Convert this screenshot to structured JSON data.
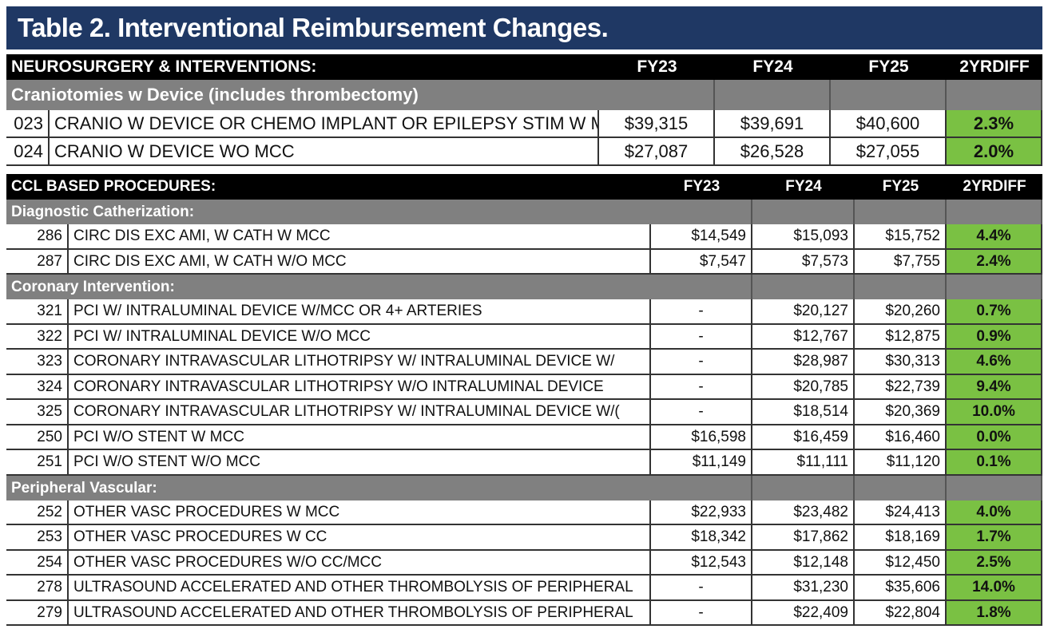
{
  "title": "Table 2. Interventional Reimbursement Changes.",
  "colors": {
    "title_bg": "#1f3864",
    "header_bg": "#000000",
    "group_bg": "#808080",
    "diff_green": "#7ac143"
  },
  "table1": {
    "header": {
      "section": "NEUROSURGERY & INTERVENTIONS:",
      "fy23": "FY23",
      "fy24": "FY24",
      "fy25": "FY25",
      "diff": "2YRDIFF"
    },
    "groups": [
      {
        "label": "Craniotomies w Device (includes thrombectomy)",
        "rows": [
          {
            "code": "023",
            "desc": "CRANIO W DEVICE OR CHEMO IMPLANT OR EPILEPSY STIM W MCC",
            "fy23": "$39,315",
            "fy24": "$39,691",
            "fy25": "$40,600",
            "diff": "2.3%"
          },
          {
            "code": "024",
            "desc": "CRANIO W DEVICE WO MCC",
            "fy23": "$27,087",
            "fy24": "$26,528",
            "fy25": "$27,055",
            "diff": "2.0%"
          }
        ]
      }
    ]
  },
  "table2": {
    "header": {
      "section": "CCL BASED PROCEDURES:",
      "fy23": "FY23",
      "fy24": "FY24",
      "fy25": "FY25",
      "diff": "2YRDIFF"
    },
    "groups": [
      {
        "label": "Diagnostic Catherization:",
        "rows": [
          {
            "code": "286",
            "desc": "CIRC DIS EXC AMI, W CATH W MCC",
            "fy23": "$14,549",
            "fy24": "$15,093",
            "fy25": "$15,752",
            "diff": "4.4%"
          },
          {
            "code": "287",
            "desc": "CIRC DIS EXC AMI, W CATH W/O MCC",
            "fy23": "$7,547",
            "fy24": "$7,573",
            "fy25": "$7,755",
            "diff": "2.4%"
          }
        ]
      },
      {
        "label": "Coronary Intervention:",
        "rows": [
          {
            "code": "321",
            "desc": "PCI W/ INTRALUMINAL DEVICE W/MCC OR 4+ ARTERIES",
            "fy23": "-",
            "fy24": "$20,127",
            "fy25": "$20,260",
            "diff": "0.7%"
          },
          {
            "code": "322",
            "desc": "PCI W/ INTRALUMINAL DEVICE W/O MCC",
            "fy23": "-",
            "fy24": "$12,767",
            "fy25": "$12,875",
            "diff": "0.9%"
          },
          {
            "code": "323",
            "desc": "CORONARY INTRAVASCULAR LITHOTRIPSY W/ INTRALUMINAL DEVICE W/",
            "fy23": "-",
            "fy24": "$28,987",
            "fy25": "$30,313",
            "diff": "4.6%"
          },
          {
            "code": "324",
            "desc": "CORONARY INTRAVASCULAR LITHOTRIPSY W/O INTRALUMINAL DEVICE",
            "fy23": "-",
            "fy24": "$20,785",
            "fy25": "$22,739",
            "diff": "9.4%"
          },
          {
            "code": "325",
            "desc": "CORONARY INTRAVASCULAR LITHOTRIPSY W/ INTRALUMINAL DEVICE W/(",
            "fy23": "-",
            "fy24": "$18,514",
            "fy25": "$20,369",
            "diff": "10.0%"
          },
          {
            "code": "250",
            "desc": "PCI W/O STENT W MCC",
            "fy23": "$16,598",
            "fy24": "$16,459",
            "fy25": "$16,460",
            "diff": "0.0%"
          },
          {
            "code": "251",
            "desc": "PCI W/O STENT W/O MCC",
            "fy23": "$11,149",
            "fy24": "$11,111",
            "fy25": "$11,120",
            "diff": "0.1%"
          }
        ]
      },
      {
        "label": "Peripheral Vascular:",
        "rows": [
          {
            "code": "252",
            "desc": "OTHER VASC PROCEDURES W MCC",
            "fy23": "$22,933",
            "fy24": "$23,482",
            "fy25": "$24,413",
            "diff": "4.0%"
          },
          {
            "code": "253",
            "desc": "OTHER VASC PROCEDURES W CC",
            "fy23": "$18,342",
            "fy24": "$17,862",
            "fy25": "$18,169",
            "diff": "1.7%"
          },
          {
            "code": "254",
            "desc": "OTHER VASC PROCEDURES W/O CC/MCC",
            "fy23": "$12,543",
            "fy24": "$12,148",
            "fy25": "$12,450",
            "diff": "2.5%"
          },
          {
            "code": "278",
            "desc": "ULTRASOUND ACCELERATED AND OTHER THROMBOLYSIS OF PERIPHERAL",
            "fy23": "-",
            "fy24": "$31,230",
            "fy25": "$35,606",
            "diff": "14.0%"
          },
          {
            "code": "279",
            "desc": "ULTRASOUND ACCELERATED AND OTHER THROMBOLYSIS OF PERIPHERAL",
            "fy23": "-",
            "fy24": "$22,409",
            "fy25": "$22,804",
            "diff": "1.8%"
          }
        ]
      }
    ]
  }
}
